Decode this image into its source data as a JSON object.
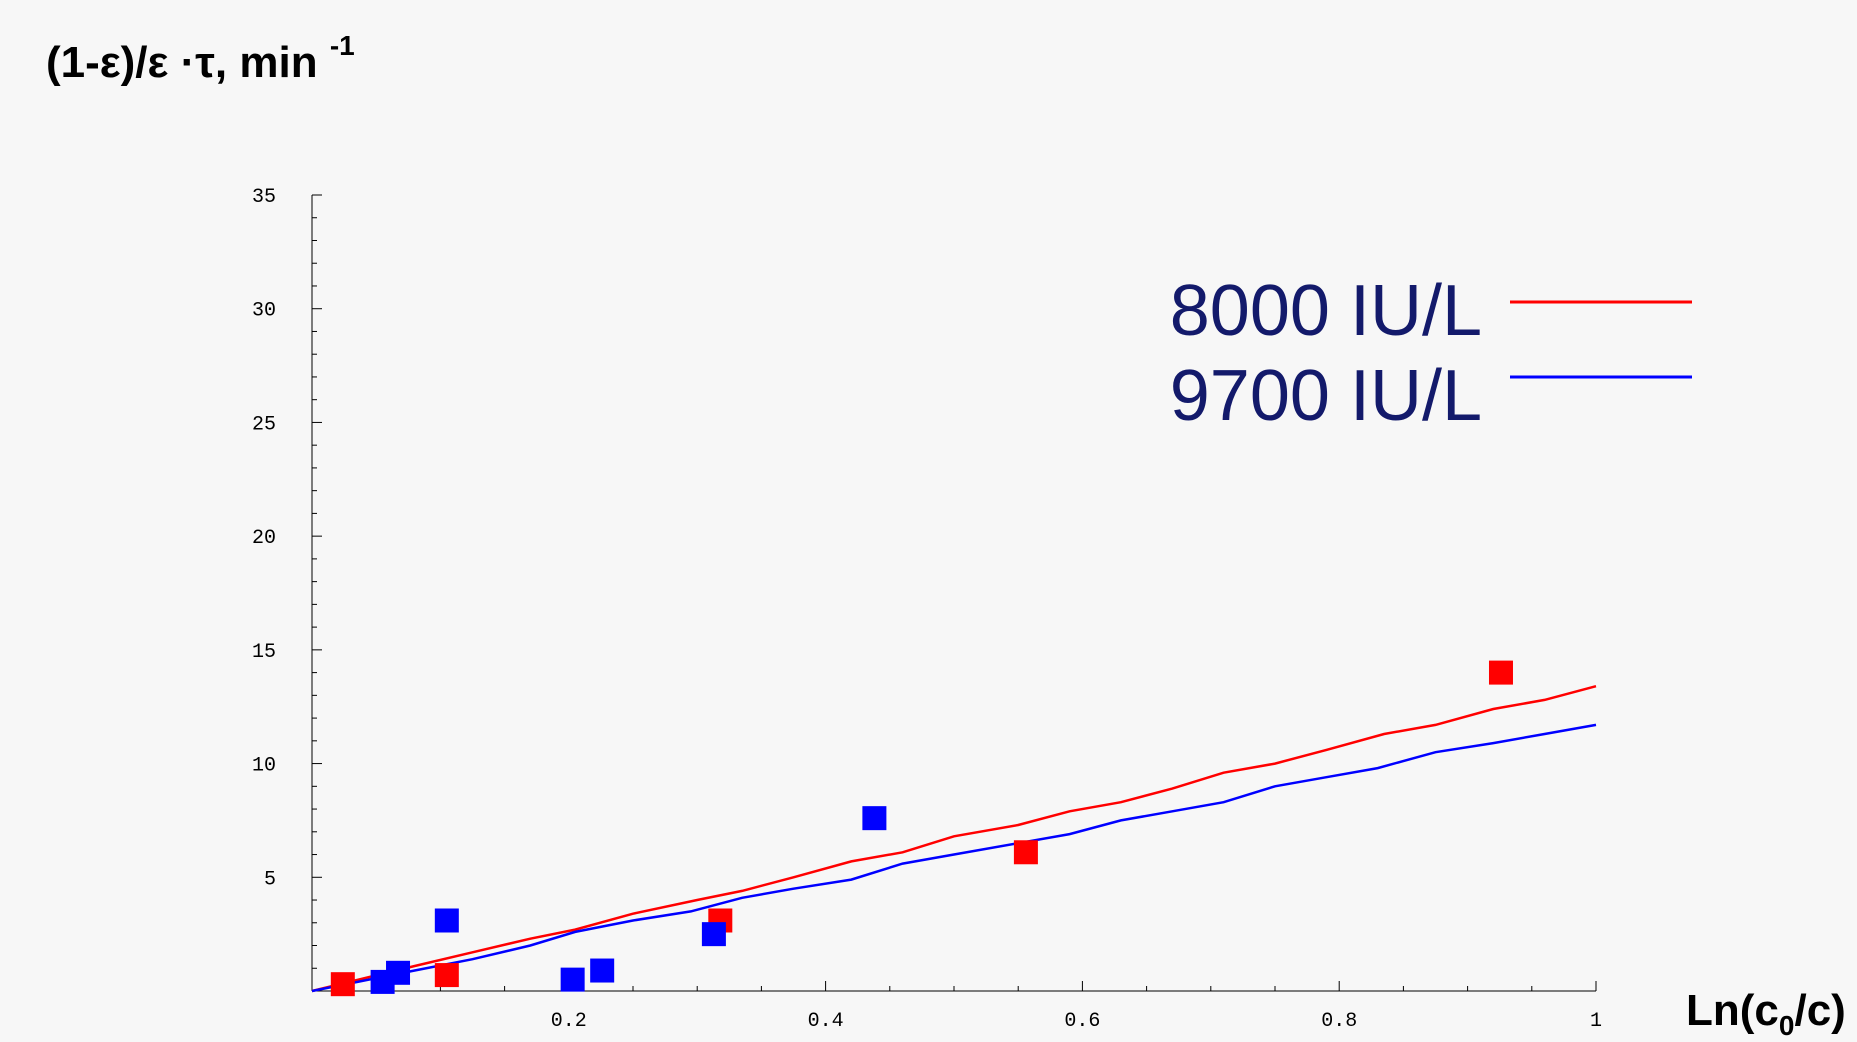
{
  "chart_data": {
    "type": "scatter",
    "ylabel": {
      "main": "(1-ε)/ε ·τ, min",
      "unit_exp": "-1"
    },
    "xlabel": {
      "main": "Ln(c",
      "sub": "0",
      "tail": "/c)"
    },
    "xlim": [
      0,
      1
    ],
    "ylim": [
      0,
      35
    ],
    "xticks": [
      0.2,
      0.4,
      0.6,
      0.8,
      1
    ],
    "xtick_labels": [
      "0.2",
      "0.4",
      "0.6",
      "0.8",
      "1"
    ],
    "yticks": [
      5,
      10,
      15,
      20,
      25,
      30,
      35
    ],
    "ytick_labels": [
      "5",
      "10",
      "15",
      "20",
      "25",
      "30",
      "35"
    ],
    "legend_position": "top-right",
    "series": [
      {
        "name": "8000 IU/L",
        "color": "#ff0000",
        "marker": "square",
        "points": [
          {
            "x": 0.024,
            "y": 0.3
          },
          {
            "x": 0.105,
            "y": 0.7
          },
          {
            "x": 0.318,
            "y": 3.1
          },
          {
            "x": 0.556,
            "y": 6.1
          },
          {
            "x": 0.926,
            "y": 14.0
          }
        ],
        "fit_line": [
          {
            "x": 0,
            "y": 0
          },
          {
            "x": 0.08,
            "y": 1.1
          },
          {
            "x": 0.125,
            "y": 1.7
          },
          {
            "x": 0.17,
            "y": 2.3
          },
          {
            "x": 0.205,
            "y": 2.7
          },
          {
            "x": 0.25,
            "y": 3.4
          },
          {
            "x": 0.3,
            "y": 4.0
          },
          {
            "x": 0.335,
            "y": 4.4
          },
          {
            "x": 0.375,
            "y": 5.0
          },
          {
            "x": 0.42,
            "y": 5.7
          },
          {
            "x": 0.46,
            "y": 6.1
          },
          {
            "x": 0.5,
            "y": 6.8
          },
          {
            "x": 0.55,
            "y": 7.3
          },
          {
            "x": 0.59,
            "y": 7.9
          },
          {
            "x": 0.63,
            "y": 8.3
          },
          {
            "x": 0.67,
            "y": 8.9
          },
          {
            "x": 0.71,
            "y": 9.6
          },
          {
            "x": 0.75,
            "y": 10.0
          },
          {
            "x": 0.79,
            "y": 10.6
          },
          {
            "x": 0.835,
            "y": 11.3
          },
          {
            "x": 0.875,
            "y": 11.7
          },
          {
            "x": 0.92,
            "y": 12.4
          },
          {
            "x": 0.96,
            "y": 12.8
          },
          {
            "x": 1.0,
            "y": 13.4
          }
        ]
      },
      {
        "name": "9700 IU/L",
        "color": "#0000ff",
        "marker": "square",
        "points": [
          {
            "x": 0.055,
            "y": 0.4
          },
          {
            "x": 0.067,
            "y": 0.8
          },
          {
            "x": 0.105,
            "y": 3.1
          },
          {
            "x": 0.203,
            "y": 0.5
          },
          {
            "x": 0.226,
            "y": 0.9
          },
          {
            "x": 0.313,
            "y": 2.5
          },
          {
            "x": 0.438,
            "y": 7.6
          }
        ],
        "fit_line": [
          {
            "x": 0,
            "y": 0
          },
          {
            "x": 0.08,
            "y": 0.9
          },
          {
            "x": 0.125,
            "y": 1.4
          },
          {
            "x": 0.17,
            "y": 2.0
          },
          {
            "x": 0.205,
            "y": 2.6
          },
          {
            "x": 0.25,
            "y": 3.1
          },
          {
            "x": 0.295,
            "y": 3.5
          },
          {
            "x": 0.335,
            "y": 4.1
          },
          {
            "x": 0.375,
            "y": 4.5
          },
          {
            "x": 0.42,
            "y": 4.9
          },
          {
            "x": 0.46,
            "y": 5.6
          },
          {
            "x": 0.5,
            "y": 6.0
          },
          {
            "x": 0.55,
            "y": 6.5
          },
          {
            "x": 0.59,
            "y": 6.9
          },
          {
            "x": 0.63,
            "y": 7.5
          },
          {
            "x": 0.67,
            "y": 7.9
          },
          {
            "x": 0.71,
            "y": 8.3
          },
          {
            "x": 0.75,
            "y": 9.0
          },
          {
            "x": 0.79,
            "y": 9.4
          },
          {
            "x": 0.83,
            "y": 9.8
          },
          {
            "x": 0.875,
            "y": 10.5
          },
          {
            "x": 0.92,
            "y": 10.9
          },
          {
            "x": 0.96,
            "y": 11.3
          },
          {
            "x": 1.0,
            "y": 11.7
          }
        ]
      }
    ]
  }
}
